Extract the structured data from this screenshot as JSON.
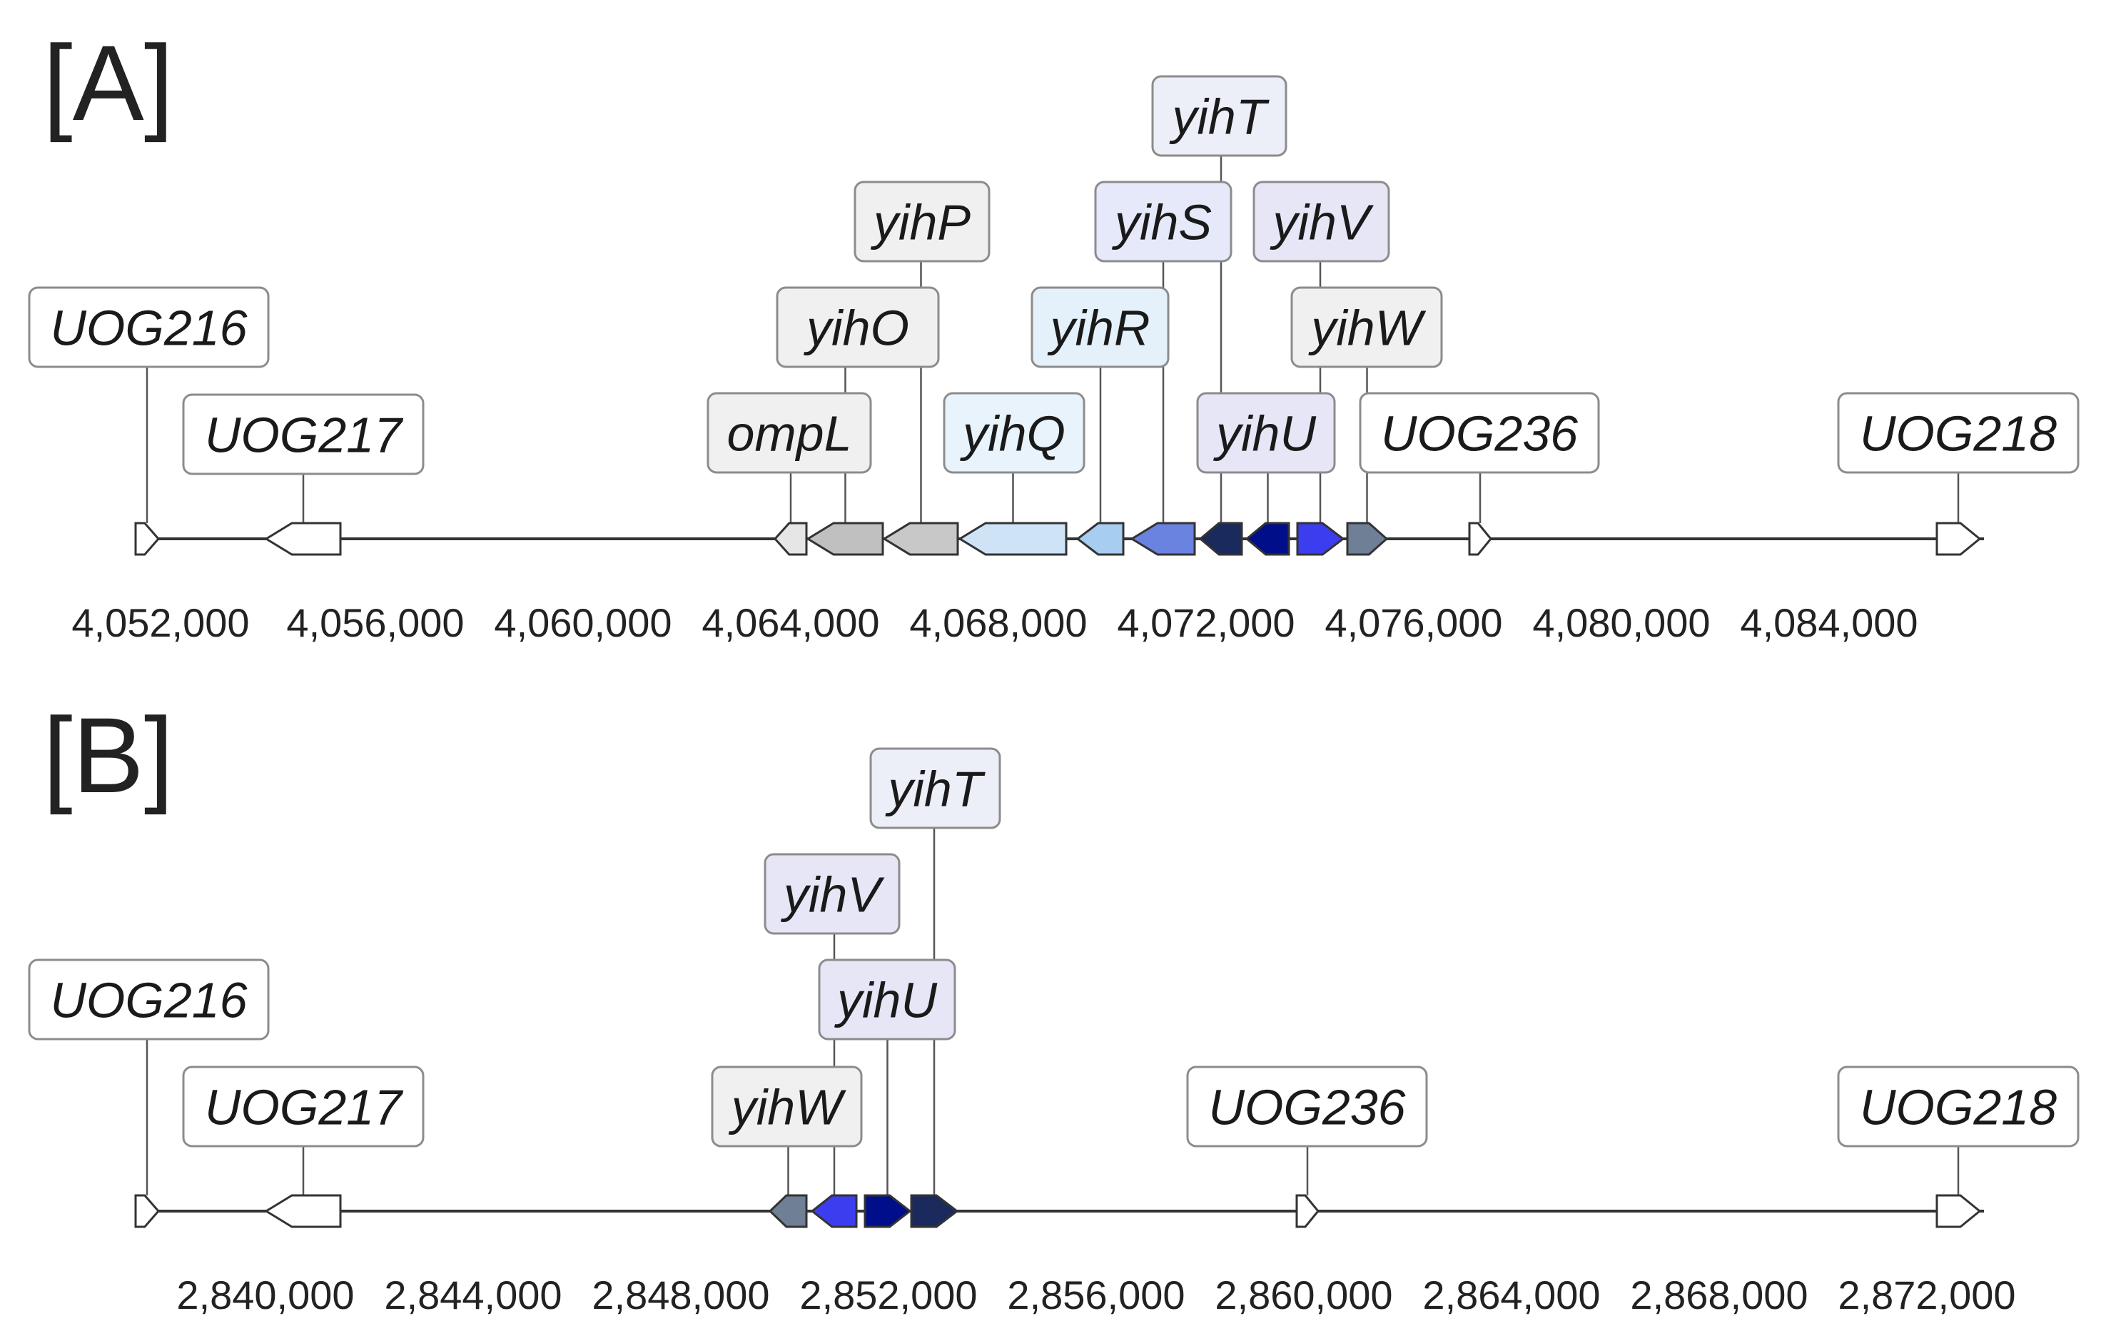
{
  "panels": [
    {
      "label": "[A]",
      "ticks": [
        "4,052,000",
        "4,056,000",
        "4,060,000",
        "4,064,000",
        "4,068,000",
        "4,072,000",
        "4,076,000",
        "4,080,000",
        "4,084,000"
      ],
      "genes": [
        {
          "name": "UOG216",
          "type": "small",
          "direction": "right",
          "fill": "#ffffff",
          "box_fill": "#ffffff"
        },
        {
          "name": "UOG217",
          "type": "arrow",
          "direction": "left",
          "fill": "#ffffff",
          "box_fill": "#ffffff"
        },
        {
          "name": "ompL",
          "type": "arrow",
          "direction": "left",
          "fill": "#e6e6e6",
          "box_fill": "#f0f0f0"
        },
        {
          "name": "yihO",
          "type": "arrow",
          "direction": "left",
          "fill": "#c0c0c0",
          "box_fill": "#f0f0f0"
        },
        {
          "name": "yihP",
          "type": "arrow",
          "direction": "left",
          "fill": "#c8c8c8",
          "box_fill": "#f0f0f0"
        },
        {
          "name": "yihQ",
          "type": "arrow",
          "direction": "left",
          "fill": "#cfe3f7",
          "box_fill": "#e8f3fc"
        },
        {
          "name": "yihR",
          "type": "arrow",
          "direction": "left",
          "fill": "#a7cdf0",
          "box_fill": "#e4f1fb"
        },
        {
          "name": "yihS",
          "type": "arrow",
          "direction": "left",
          "fill": "#6a82e0",
          "box_fill": "#e6e9fa"
        },
        {
          "name": "yihT",
          "type": "arrow",
          "direction": "left",
          "fill": "#1b2a5c",
          "box_fill": "#eceef8"
        },
        {
          "name": "yihU",
          "type": "arrow",
          "direction": "left",
          "fill": "#000e8a",
          "box_fill": "#e6e6f7"
        },
        {
          "name": "yihV",
          "type": "arrow",
          "direction": "right",
          "fill": "#3d3df0",
          "box_fill": "#e6e6f7"
        },
        {
          "name": "yihW",
          "type": "arrow",
          "direction": "right",
          "fill": "#6e7f96",
          "box_fill": "#f0f0f0"
        },
        {
          "name": "UOG236",
          "type": "small",
          "direction": "right",
          "fill": "#ffffff",
          "box_fill": "#ffffff"
        },
        {
          "name": "UOG218",
          "type": "arrow",
          "direction": "right",
          "fill": "#ffffff",
          "box_fill": "#ffffff"
        }
      ]
    },
    {
      "label": "[B]",
      "ticks": [
        "2,840,000",
        "2,844,000",
        "2,848,000",
        "2,852,000",
        "2,856,000",
        "2,860,000",
        "2,864,000",
        "2,868,000",
        "2,872,000"
      ],
      "genes": [
        {
          "name": "UOG216",
          "type": "small",
          "direction": "right",
          "fill": "#ffffff",
          "box_fill": "#ffffff"
        },
        {
          "name": "UOG217",
          "type": "arrow",
          "direction": "left",
          "fill": "#ffffff",
          "box_fill": "#ffffff"
        },
        {
          "name": "yihW",
          "type": "arrow",
          "direction": "left",
          "fill": "#6e7f96",
          "box_fill": "#f0f0f0"
        },
        {
          "name": "yihV",
          "type": "arrow",
          "direction": "left",
          "fill": "#3d3df0",
          "box_fill": "#e6e6f7"
        },
        {
          "name": "yihU",
          "type": "arrow",
          "direction": "right",
          "fill": "#000e8a",
          "box_fill": "#e6e6f7"
        },
        {
          "name": "yihT",
          "type": "arrow",
          "direction": "right",
          "fill": "#1b2a5c",
          "box_fill": "#eceef8"
        },
        {
          "name": "UOG236",
          "type": "small",
          "direction": "right",
          "fill": "#ffffff",
          "box_fill": "#ffffff"
        },
        {
          "name": "UOG218",
          "type": "arrow",
          "direction": "right",
          "fill": "#ffffff",
          "box_fill": "#ffffff"
        }
      ]
    }
  ]
}
